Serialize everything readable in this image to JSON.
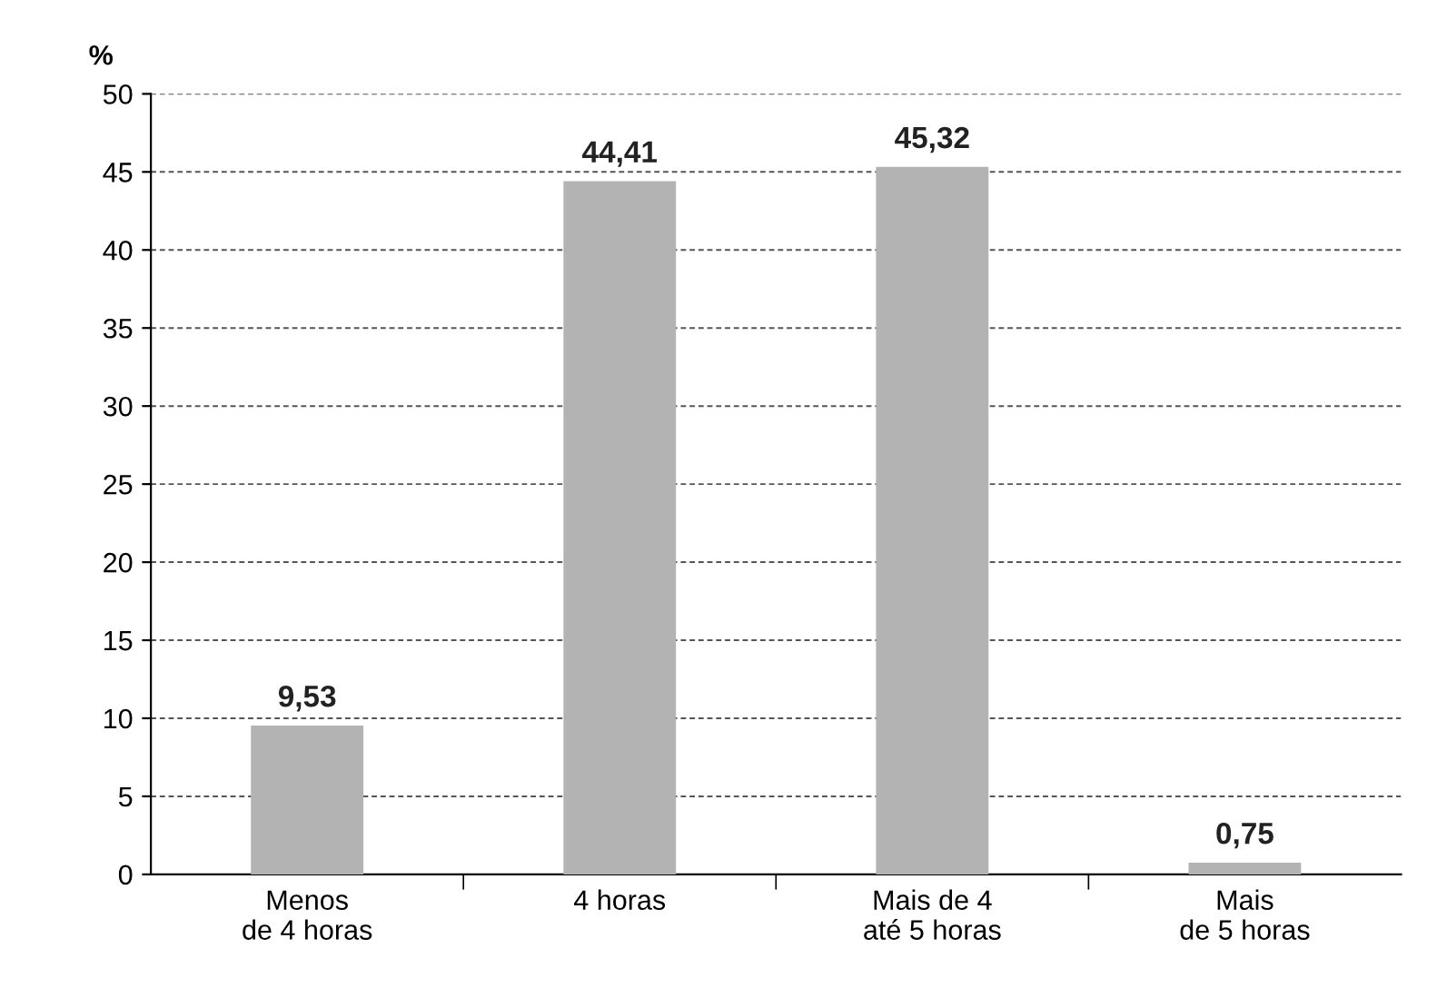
{
  "chart_data": {
    "type": "bar",
    "ylabel": "%",
    "categories": [
      "Menos\nde 4 horas",
      "4 horas",
      "Mais de 4\naté 5 horas",
      "Mais\nde 5 horas"
    ],
    "values": [
      9.53,
      44.41,
      45.32,
      0.75
    ],
    "value_labels": [
      "9,53",
      "44,41",
      "45,32",
      "0,75"
    ],
    "color": "#b3b3b3",
    "ylim": [
      0,
      50
    ],
    "yticks": [
      0,
      5,
      10,
      15,
      20,
      25,
      30,
      35,
      40,
      45,
      50
    ],
    "grid": "y"
  }
}
